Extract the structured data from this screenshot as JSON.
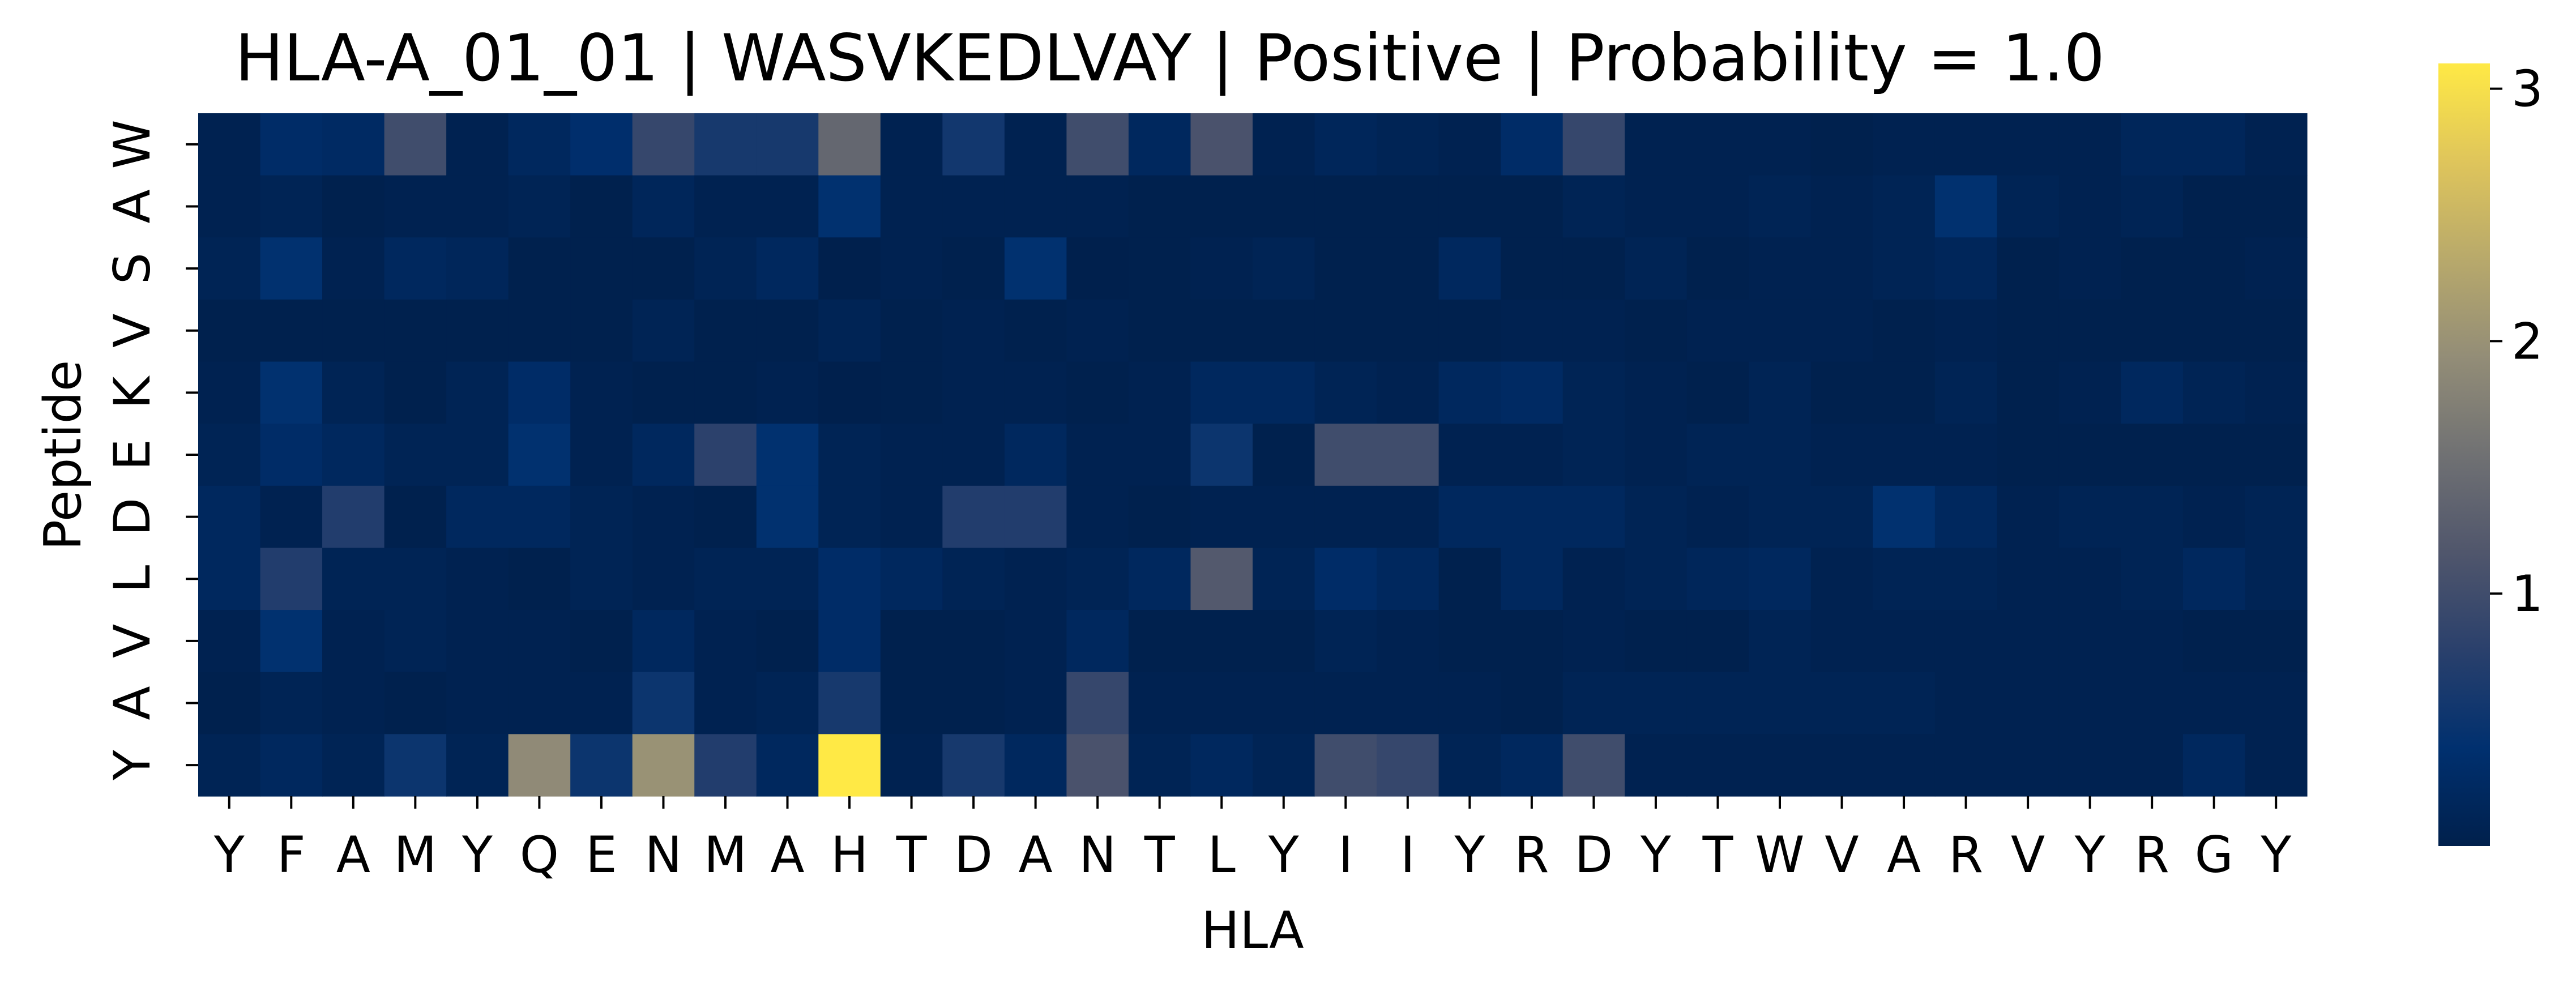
{
  "chart_data": {
    "type": "heatmap",
    "title": "HLA-A_01_01 | WASVKEDLVAY | Positive | Probability = 1.0",
    "xlabel": "HLA",
    "ylabel": "Peptide",
    "x_categories": [
      "Y",
      "F",
      "A",
      "M",
      "Y",
      "Q",
      "E",
      "N",
      "M",
      "A",
      "H",
      "T",
      "D",
      "A",
      "N",
      "T",
      "L",
      "Y",
      "I",
      "I",
      "Y",
      "R",
      "D",
      "Y",
      "T",
      "W",
      "V",
      "A",
      "R",
      "V",
      "Y",
      "R",
      "G",
      "Y"
    ],
    "y_categories": [
      "W",
      "A",
      "S",
      "V",
      "K",
      "E",
      "D",
      "L",
      "V",
      "A",
      "Y"
    ],
    "colormap": "cividis",
    "vmin": 0.0,
    "vmax": 3.1,
    "colorbar_ticks": [
      1,
      2,
      3
    ],
    "values": [
      [
        0.05,
        0.3,
        0.25,
        1.0,
        0.05,
        0.2,
        0.35,
        0.9,
        0.6,
        0.6,
        1.4,
        0.05,
        0.55,
        0.05,
        1.0,
        0.2,
        1.1,
        0.05,
        0.15,
        0.1,
        0.05,
        0.3,
        0.9,
        0.05,
        0.05,
        0.05,
        0.02,
        0.05,
        0.05,
        0.05,
        0.05,
        0.15,
        0.15,
        0.05
      ],
      [
        0.05,
        0.1,
        0.02,
        0.05,
        0.05,
        0.1,
        0.02,
        0.15,
        0.05,
        0.05,
        0.4,
        0.05,
        0.05,
        0.05,
        0.05,
        0.02,
        0.02,
        0.02,
        0.02,
        0.02,
        0.02,
        0.02,
        0.1,
        0.05,
        0.05,
        0.1,
        0.05,
        0.1,
        0.4,
        0.1,
        0.05,
        0.1,
        0.02,
        0.02
      ],
      [
        0.1,
        0.4,
        0.05,
        0.2,
        0.15,
        0.02,
        0.02,
        0.02,
        0.1,
        0.2,
        0.01,
        0.05,
        0.02,
        0.4,
        0.01,
        0.02,
        0.05,
        0.1,
        0.02,
        0.02,
        0.2,
        0.02,
        0.02,
        0.1,
        0.02,
        0.05,
        0.05,
        0.1,
        0.15,
        0.02,
        0.05,
        0.02,
        0.02,
        0.05
      ],
      [
        0.02,
        0.02,
        0.02,
        0.02,
        0.02,
        0.02,
        0.02,
        0.1,
        0.02,
        0.02,
        0.1,
        0.02,
        0.05,
        0.02,
        0.05,
        0.02,
        0.02,
        0.02,
        0.02,
        0.02,
        0.02,
        0.05,
        0.05,
        0.02,
        0.05,
        0.05,
        0.05,
        0.02,
        0.05,
        0.02,
        0.02,
        0.02,
        0.02,
        0.02
      ],
      [
        0.05,
        0.4,
        0.1,
        0.02,
        0.1,
        0.3,
        0.05,
        0.02,
        0.02,
        0.05,
        0.01,
        0.02,
        0.05,
        0.05,
        0.02,
        0.05,
        0.2,
        0.2,
        0.1,
        0.05,
        0.2,
        0.25,
        0.1,
        0.05,
        0.02,
        0.1,
        0.02,
        0.02,
        0.1,
        0.02,
        0.05,
        0.2,
        0.1,
        0.05
      ],
      [
        0.1,
        0.3,
        0.2,
        0.1,
        0.1,
        0.4,
        0.05,
        0.2,
        0.8,
        0.4,
        0.1,
        0.05,
        0.05,
        0.2,
        0.05,
        0.05,
        0.5,
        0.02,
        1.0,
        1.0,
        0.05,
        0.05,
        0.1,
        0.05,
        0.1,
        0.1,
        0.05,
        0.05,
        0.05,
        0.02,
        0.02,
        0.02,
        0.02,
        0.02
      ],
      [
        0.2,
        0.05,
        0.7,
        0.02,
        0.2,
        0.2,
        0.1,
        0.05,
        0.02,
        0.4,
        0.1,
        0.05,
        0.7,
        0.7,
        0.05,
        0.02,
        0.05,
        0.05,
        0.05,
        0.05,
        0.2,
        0.2,
        0.2,
        0.1,
        0.05,
        0.1,
        0.1,
        0.4,
        0.2,
        0.05,
        0.1,
        0.1,
        0.05,
        0.1
      ],
      [
        0.2,
        0.7,
        0.1,
        0.1,
        0.05,
        0.02,
        0.1,
        0.05,
        0.1,
        0.1,
        0.3,
        0.2,
        0.1,
        0.05,
        0.1,
        0.2,
        1.2,
        0.1,
        0.3,
        0.2,
        0.02,
        0.2,
        0.05,
        0.1,
        0.15,
        0.2,
        0.05,
        0.1,
        0.1,
        0.05,
        0.05,
        0.1,
        0.2,
        0.1
      ],
      [
        0.05,
        0.4,
        0.05,
        0.1,
        0.05,
        0.05,
        0.02,
        0.2,
        0.05,
        0.02,
        0.3,
        0.02,
        0.02,
        0.05,
        0.2,
        0.02,
        0.02,
        0.02,
        0.1,
        0.05,
        0.02,
        0.02,
        0.05,
        0.02,
        0.02,
        0.1,
        0.05,
        0.05,
        0.05,
        0.05,
        0.05,
        0.05,
        0.02,
        0.02
      ],
      [
        0.02,
        0.1,
        0.05,
        0.02,
        0.05,
        0.05,
        0.05,
        0.5,
        0.05,
        0.1,
        0.6,
        0.02,
        0.02,
        0.05,
        0.9,
        0.05,
        0.05,
        0.05,
        0.05,
        0.05,
        0.05,
        0.02,
        0.1,
        0.1,
        0.1,
        0.1,
        0.1,
        0.1,
        0.05,
        0.05,
        0.05,
        0.05,
        0.05,
        0.05
      ],
      [
        0.1,
        0.2,
        0.1,
        0.5,
        0.1,
        1.9,
        0.5,
        2.0,
        0.7,
        0.2,
        3.1,
        0.05,
        0.6,
        0.2,
        1.1,
        0.1,
        0.2,
        0.1,
        1.0,
        0.9,
        0.1,
        0.2,
        1.0,
        0.05,
        0.05,
        0.05,
        0.05,
        0.05,
        0.05,
        0.05,
        0.05,
        0.05,
        0.2,
        0.05
      ]
    ]
  }
}
